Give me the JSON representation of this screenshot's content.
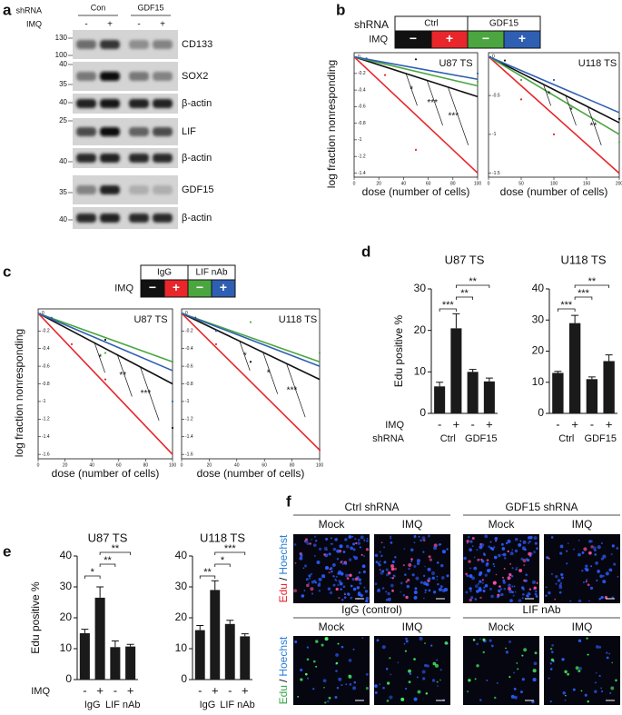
{
  "panel_labels": [
    "a",
    "b",
    "c",
    "d",
    "e",
    "f"
  ],
  "blot": {
    "shrna_label": "shRNA",
    "groups": [
      "Con",
      "GDF15"
    ],
    "imq_label": "IMQ",
    "signs": [
      "-",
      "+",
      "-",
      "+"
    ],
    "rows": [
      {
        "protein": "CD133",
        "markers": [
          "130",
          "100"
        ]
      },
      {
        "protein": "SOX2",
        "markers": [
          "40",
          "35"
        ]
      },
      {
        "protein": "β-actin",
        "markers": [
          "40"
        ]
      },
      {
        "protein": "LIF",
        "markers": [
          "25"
        ]
      },
      {
        "protein": "β-actin",
        "markers": [
          "40"
        ]
      },
      {
        "protein": "GDF15",
        "markers": [
          "35"
        ]
      },
      {
        "protein": "β-actin",
        "markers": [
          "40"
        ]
      }
    ]
  },
  "legends": [
    {
      "title": "shRNA",
      "groups": [
        "Ctrl",
        "GDF15"
      ],
      "row_label": "IMQ",
      "signs": [
        "−",
        "+",
        "−",
        "+"
      ]
    },
    {
      "groups": [
        "IgG",
        "LIF nAb"
      ],
      "row_label": "IMQ",
      "signs": [
        "−",
        "+",
        "−",
        "+"
      ]
    }
  ],
  "chart_data": [
    {
      "type": "line",
      "title": "U87 TS",
      "ylabel": "log fraction nonresponding",
      "xlabel": "dose (number of cells)",
      "x": [
        0,
        100
      ],
      "xlim": [
        0,
        100
      ],
      "xticks": [
        0,
        20,
        40,
        60,
        80,
        100
      ],
      "ylim": [
        -1.45,
        0.05
      ],
      "yticks": [
        0,
        -0.2,
        -0.4,
        -0.6,
        -0.8,
        -1,
        -1.2,
        -1.4
      ],
      "series": [
        {
          "color": "#111111",
          "values": [
            0,
            -0.48
          ],
          "points": [
            [
              50,
              -0.03
            ]
          ]
        },
        {
          "color": "#e8262b",
          "values": [
            0,
            -1.4
          ],
          "points": [
            [
              25,
              -0.22
            ],
            [
              50,
              -1.12
            ]
          ]
        },
        {
          "color": "#4ba640",
          "values": [
            0,
            -0.35
          ],
          "points": [
            [
              100,
              -0.3
            ]
          ]
        },
        {
          "color": "#2f5fb3",
          "values": [
            0,
            -0.27
          ],
          "points": [
            [
              10,
              -0.02
            ],
            [
              100,
              -0.2
            ]
          ]
        }
      ],
      "annotations": [
        "*",
        "***",
        "***"
      ]
    },
    {
      "type": "line",
      "title": "U118 TS",
      "xlabel": "dose (number of cells)",
      "x": [
        0,
        200
      ],
      "xlim": [
        0,
        200
      ],
      "xticks": [
        0,
        50,
        100,
        150,
        200
      ],
      "ylim": [
        -1.55,
        0.05
      ],
      "yticks": [
        0,
        -0.5,
        -1,
        -1.5
      ],
      "series": [
        {
          "color": "#111111",
          "values": [
            0,
            -0.85
          ],
          "points": [
            [
              25,
              -0.05
            ],
            [
              200,
              -0.8
            ]
          ]
        },
        {
          "color": "#e8262b",
          "values": [
            0,
            -1.5
          ],
          "points": [
            [
              50,
              -0.55
            ],
            [
              100,
              -1.0
            ]
          ]
        },
        {
          "color": "#4ba640",
          "values": [
            0,
            -1.0
          ],
          "points": [
            [
              50,
              -0.3
            ],
            [
              200,
              -1.1
            ]
          ]
        },
        {
          "color": "#2f5fb3",
          "values": [
            0,
            -0.72
          ],
          "points": [
            [
              100,
              -0.3
            ]
          ]
        }
      ],
      "annotations": [
        "*",
        "*",
        "**"
      ]
    },
    {
      "type": "line",
      "title": "U87 TS",
      "ylabel": "log fraction nonresponding",
      "xlabel": "dose (number of cells)",
      "x": [
        0,
        100
      ],
      "xlim": [
        0,
        100
      ],
      "xticks": [
        0,
        20,
        40,
        60,
        80,
        100
      ],
      "ylim": [
        -1.65,
        0.05
      ],
      "yticks": [
        0,
        -0.2,
        -0.4,
        -0.6,
        -0.8,
        -1,
        -1.2,
        -1.4,
        -1.6
      ],
      "series": [
        {
          "color": "#111111",
          "values": [
            0,
            -0.8
          ],
          "points": [
            [
              50,
              -0.3
            ],
            [
              100,
              -1.3
            ]
          ]
        },
        {
          "color": "#e8262b",
          "values": [
            0,
            -1.6
          ],
          "points": [
            [
              25,
              -0.35
            ],
            [
              50,
              -0.75
            ]
          ]
        },
        {
          "color": "#4ba640",
          "values": [
            0,
            -0.55
          ],
          "points": [
            [
              50,
              -0.45
            ],
            [
              100,
              -0.55
            ]
          ]
        },
        {
          "color": "#2f5fb3",
          "values": [
            0,
            -0.65
          ],
          "points": [
            [
              10,
              -0.05
            ],
            [
              100,
              -1.0
            ]
          ]
        }
      ],
      "annotations": [
        "*",
        "**",
        "***"
      ]
    },
    {
      "type": "line",
      "title": "U118 TS",
      "xlabel": "dose (number of cells)",
      "x": [
        0,
        100
      ],
      "xlim": [
        0,
        100
      ],
      "xticks": [
        0,
        20,
        40,
        60,
        80,
        100
      ],
      "ylim": [
        -1.65,
        0.05
      ],
      "yticks": [
        0,
        -0.2,
        -0.4,
        -0.6,
        -0.8,
        -1,
        -1.2,
        -1.4,
        -1.6
      ],
      "series": [
        {
          "color": "#111111",
          "values": [
            0,
            -0.75
          ],
          "points": [
            [
              10,
              -0.05
            ],
            [
              50,
              -0.55
            ]
          ]
        },
        {
          "color": "#e8262b",
          "values": [
            0,
            -1.55
          ],
          "points": [
            [
              25,
              -0.35
            ],
            [
              100,
              -1.55
            ]
          ]
        },
        {
          "color": "#4ba640",
          "values": [
            0,
            -0.55
          ],
          "points": [
            [
              50,
              -0.1
            ],
            [
              100,
              -0.45
            ]
          ]
        },
        {
          "color": "#2f5fb3",
          "values": [
            0,
            -0.6
          ],
          "points": [
            [
              25,
              -0.2
            ]
          ]
        }
      ],
      "annotations": [
        "*",
        "*",
        "***"
      ]
    },
    {
      "type": "bar",
      "title": "U87 TS",
      "ylabel": "Edu positive %",
      "row_labels": [
        "IMQ",
        "shRNA"
      ],
      "categories": [
        "-",
        "+",
        "-",
        "+"
      ],
      "groups": [
        "Ctrl",
        "GDF15"
      ],
      "values": [
        6.5,
        20.5,
        10,
        7.7
      ],
      "errors": [
        1,
        3.5,
        0.6,
        0.8
      ],
      "color": "#1a1a1a",
      "ylim": [
        0,
        30
      ],
      "yticks": [
        0,
        10,
        20,
        30
      ],
      "brackets": [
        {
          "from": 0,
          "to": 1,
          "label": "***"
        },
        {
          "from": 1,
          "to": 2,
          "label": "**"
        },
        {
          "from": 1,
          "to": 3,
          "label": "**"
        }
      ]
    },
    {
      "type": "bar",
      "title": "U118 TS",
      "categories": [
        "-",
        "+",
        "-",
        "+"
      ],
      "groups": [
        "Ctrl",
        "GDF15"
      ],
      "values": [
        13,
        29,
        11,
        16.8
      ],
      "errors": [
        0.5,
        2.5,
        0.7,
        2
      ],
      "color": "#1a1a1a",
      "ylim": [
        0,
        40
      ],
      "yticks": [
        0,
        10,
        20,
        30,
        40
      ],
      "brackets": [
        {
          "from": 0,
          "to": 1,
          "label": "***"
        },
        {
          "from": 1,
          "to": 2,
          "label": "***"
        },
        {
          "from": 1,
          "to": 3,
          "label": "**"
        }
      ]
    },
    {
      "type": "bar",
      "title": "U87 TS",
      "ylabel": "Edu positive %",
      "row_labels": [
        "IMQ"
      ],
      "categories": [
        "-",
        "+",
        "-",
        "+"
      ],
      "groups": [
        "IgG",
        "LIF nAb"
      ],
      "values": [
        15,
        26.5,
        10.5,
        10.7
      ],
      "errors": [
        1.3,
        3.5,
        2,
        0.7
      ],
      "color": "#1a1a1a",
      "ylim": [
        0,
        40
      ],
      "yticks": [
        0,
        10,
        20,
        30,
        40
      ],
      "brackets": [
        {
          "from": 0,
          "to": 1,
          "label": "*"
        },
        {
          "from": 1,
          "to": 2,
          "label": "**"
        },
        {
          "from": 1,
          "to": 3,
          "label": "**"
        }
      ]
    },
    {
      "type": "bar",
      "title": "U118 TS",
      "categories": [
        "-",
        "+",
        "-",
        "+"
      ],
      "groups": [
        "IgG",
        "LIF nAb"
      ],
      "values": [
        16,
        29,
        18,
        14
      ],
      "errors": [
        1.5,
        3,
        1.2,
        0.8
      ],
      "color": "#1a1a1a",
      "ylim": [
        0,
        40
      ],
      "yticks": [
        0,
        10,
        20,
        30,
        40
      ],
      "brackets": [
        {
          "from": 0,
          "to": 1,
          "label": "**"
        },
        {
          "from": 1,
          "to": 2,
          "label": "*"
        },
        {
          "from": 1,
          "to": 3,
          "label": "***"
        }
      ]
    }
  ],
  "images": {
    "rows": [
      {
        "groups": [
          "Ctrl shRNA",
          "GDF15 shRNA"
        ],
        "columns": [
          "Mock",
          "IMQ",
          "Mock",
          "IMQ"
        ],
        "stain": [
          "Edu",
          "/",
          "Hoechst"
        ]
      },
      {
        "groups": [
          "IgG (control)",
          "LIF nAb"
        ],
        "columns": [
          "Mock",
          "IMQ",
          "Mock",
          "IMQ"
        ],
        "stain": [
          "Edu",
          "/",
          "Hoechst"
        ]
      }
    ]
  }
}
